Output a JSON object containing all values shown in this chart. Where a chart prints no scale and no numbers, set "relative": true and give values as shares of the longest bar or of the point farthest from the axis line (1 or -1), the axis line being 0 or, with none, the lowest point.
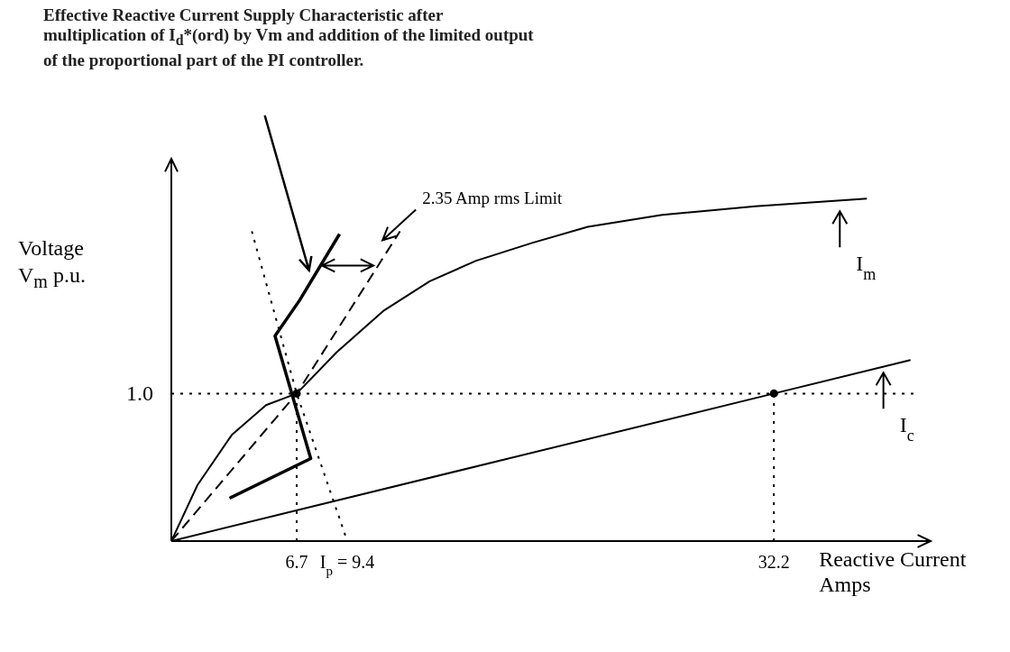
{
  "chart_data": {
    "type": "line",
    "relative": true,
    "annotations": [
      "Effective Reactive Current Supply Characteristic after multiplication of I$_{d}$*(ord) by Vm and addition of the limited output of the proportional part of the PI controller.",
      "2.35 Amp rms Limit",
      "1.0"
    ],
    "ylabel": "Voltage V$_{m}$ p.u.",
    "xlabel": "Reactive Current Amps",
    "xlim": [
      0,
      40
    ],
    "xticks": [
      6.7,
      {
        "value": 9.4,
        "label": "I$_{p}$ = 9.4"
      },
      32.2
    ],
    "marker": "none",
    "legend": "right",
    "ref_lines": [
      {
        "axis": "y",
        "value": 0.431,
        "line_style": "dotted",
        "color": "#000000"
      },
      {
        "axis": "x",
        "value": 6.7,
        "line_style": "dotted",
        "color": "#000000"
      },
      {
        "axis": "x",
        "value": 32.2,
        "line_style": "dotted",
        "color": "#000000"
      }
    ],
    "series": [
      {
        "name": "I$_{m}$",
        "color": "#000000",
        "line_style": "solid",
        "x": [
          0,
          1.4,
          3.23,
          5.06,
          6.7,
          8.84,
          11.32,
          13.81,
          16.29,
          19.28,
          22.26,
          26.24,
          31.21,
          37.17
        ],
        "values": [
          0,
          0.164,
          0.31,
          0.397,
          0.431,
          0.552,
          0.672,
          0.759,
          0.819,
          0.871,
          0.918,
          0.953,
          0.978,
          1
        ]
      },
      {
        "name": "I$_{c}$",
        "color": "#000000",
        "line_style": "solid",
        "x": [
          0,
          32.2,
          39.5
        ],
        "values": [
          0,
          0.431,
          0.529
        ]
      },
      {
        "color": "#000000",
        "line_style": "solid",
        "x": [
          3.11,
          7.45,
          5.54,
          6.85,
          8.99
        ],
        "values": [
          0.125,
          0.241,
          0.599,
          0.703,
          0.897
        ]
      },
      {
        "color": "#000000",
        "line_style": "dashed",
        "x": [
          0,
          6.7,
          12.22
        ],
        "values": [
          0,
          0.431,
          0.905
        ]
      },
      {
        "color": "#000000",
        "line_style": "dotted",
        "x": [
          4.3,
          6.7,
          9.4
        ],
        "values": [
          0.905,
          0.431,
          0
        ]
      },
      {
        "type": "scatter",
        "color": "#000000",
        "marker": "circle",
        "x": [
          6.7,
          32.2
        ],
        "values": [
          0.431,
          0.431
        ]
      }
    ]
  }
}
